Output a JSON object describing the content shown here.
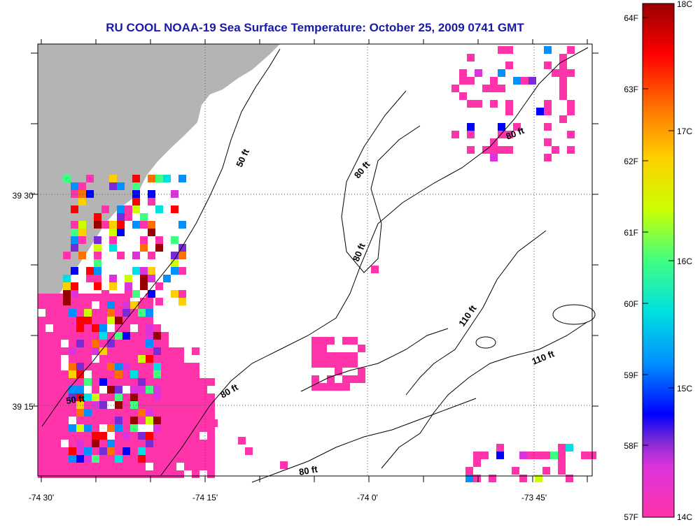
{
  "title": "RU COOL  NOAA-19  Sea Surface Temperature:  October 25, 2009 0741 GMT",
  "axes": {
    "x_ticks": [
      "-74 30'",
      "-74 15'",
      "-74 0'",
      "-73 45'"
    ],
    "y_ticks": [
      "39 30'",
      "39 15'"
    ]
  },
  "contour_labels": [
    "50 ft",
    "50 ft",
    "80 ft",
    "80 ft",
    "80 ft",
    "80 ft",
    "80 ft",
    "110 ft",
    "110 ft"
  ],
  "colorbar": {
    "fahrenheit": [
      "64F",
      "63F",
      "62F",
      "61F",
      "60F",
      "59F",
      "58F",
      "57F"
    ],
    "celsius": [
      "18C",
      "17C",
      "16C",
      "15C",
      "14C"
    ]
  },
  "colors": {
    "title": "#1a1aa6",
    "land": "#b4b4b4",
    "sst_min": "#ff33aa",
    "sst_max": "#990000"
  }
}
